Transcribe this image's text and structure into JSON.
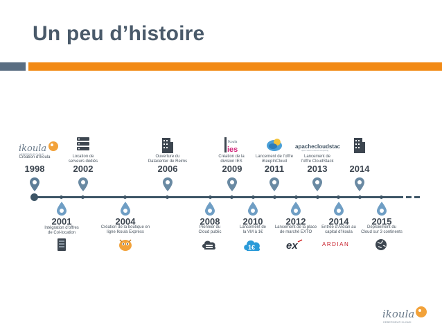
{
  "slide": {
    "title": "Un peu d’histoire"
  },
  "top_events": [
    {
      "year": "1998",
      "text": "Création d’Ikoula",
      "icon": "ikoula-logo-icon"
    },
    {
      "year": "2002",
      "text": "Location de\nserveurs dédiés",
      "icon": "server-icon"
    },
    {
      "year": "2006",
      "text": "Ouverture du\nDatacenter de Reims",
      "icon": "building-icon"
    },
    {
      "year": "2009",
      "text": "Création de la\ndivision IES",
      "icon": "ies-logo-icon"
    },
    {
      "year": "2011",
      "text": "Lancement de l’offre\niKeepInCloud",
      "icon": "ikeepincloud-logo-icon"
    },
    {
      "year": "2013",
      "text": "Lancement de\nl’offre CloudStack",
      "icon": "apache-cloudstack-logo"
    },
    {
      "year": "2014",
      "text": "",
      "icon": "building-icon"
    }
  ],
  "bottom_events": [
    {
      "year": "2001",
      "text": "Intégration d’offres\nde Col-location",
      "icon": "server-rack-icon"
    },
    {
      "year": "2004",
      "text": "Création de la boutique en\nligne Ikoula Express",
      "icon": "ikoula-mascot-icon"
    },
    {
      "year": "2008",
      "text": "Pionnier du\nCloud public",
      "icon": "cloud-server-icon"
    },
    {
      "year": "2010",
      "text": "Lancement de\nla VM à 1€",
      "icon": "one-euro-cloud-icon"
    },
    {
      "year": "2012",
      "text": "Lancement de la place\nde marché EXTO",
      "icon": "exto-logo-icon"
    },
    {
      "year": "2014",
      "text": "Entrée d’Ardian au\ncapital d’Ikoula",
      "icon": "ardian-logo"
    },
    {
      "year": "2015",
      "text": "Déploiement du\nCloud sur 3 continents",
      "icon": "globe-icon"
    }
  ],
  "logos": {
    "top_ikoula": "ikoula",
    "top_ikoula_sub": "HEBERGEUR CLOUD",
    "ies": "ies",
    "ies_small": "Ikoula",
    "cloudstack": "apachecloudstack",
    "cloudstack_sub": "open source cloud computing",
    "ardian": "ARDIAN",
    "euro": "1€",
    "exto": "ex",
    "footer_ikoula": "ikoula",
    "footer_sub": "HEBERGEUR CLOUD"
  },
  "colors": {
    "orange": "#f28a15",
    "slate": "#5a6e82",
    "pin": "#6a8aa3",
    "drop": "#6f9ec4"
  }
}
